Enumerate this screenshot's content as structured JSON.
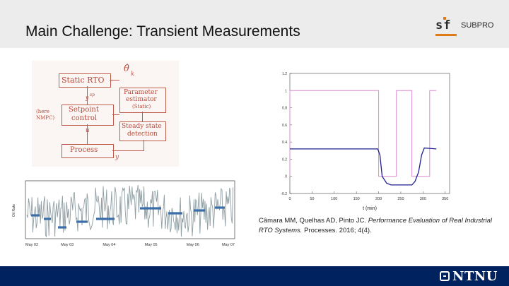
{
  "header": {
    "title": "Main Challenge: Transient Measurements"
  },
  "logo": {
    "mark": "sf",
    "name": "SUBPRO"
  },
  "diagram": {
    "static_rto": "Static RTO",
    "theta_hat": "θ̂",
    "theta_sub": "k",
    "param_line1": "Parameter",
    "param_line2": "estimator",
    "param_line3": "(Static)",
    "setpoint_line1": "Setpoint",
    "setpoint_line2": "control",
    "here_line1": "(here",
    "here_line2": "NMPC)",
    "steady_line1": "Steady state",
    "steady_line2": "detection",
    "process": "Process",
    "ysp": "y",
    "ysp_sup": "sp",
    "u": "u",
    "y": "y"
  },
  "timeseries": {
    "ylabel": "Oil Rate",
    "xticks": [
      "May 02",
      "May 03",
      "May 04",
      "May 05",
      "May 06",
      "May 07"
    ]
  },
  "chart_data": {
    "type": "line",
    "xlabel": "t (min)",
    "ylabel": "",
    "xlim": [
      0,
      360
    ],
    "ylim": [
      -0.2,
      1.2
    ],
    "xticks": [
      "0",
      "50",
      "100",
      "150",
      "200",
      "250",
      "300",
      "350"
    ],
    "yticks": [
      "-0.2",
      "0",
      "0.2",
      "0.4",
      "0.6",
      "0.8",
      "1",
      "1.2"
    ],
    "grid": false,
    "series": [
      {
        "color": "#1f1f8f",
        "x": [
          0,
          150,
          198,
          203,
          208,
          218,
          228,
          240,
          275,
          282,
          290,
          297,
          303,
          330
        ],
        "y": [
          0.32,
          0.32,
          0.32,
          0.25,
          0.0,
          -0.08,
          -0.1,
          -0.1,
          -0.1,
          -0.06,
          0.05,
          0.25,
          0.33,
          0.32
        ]
      },
      {
        "color": "#d98ccf",
        "x": [
          0,
          0,
          200,
          200,
          240,
          240,
          275,
          275,
          315,
          315,
          330
        ],
        "y": [
          0,
          1,
          1,
          0,
          0,
          1,
          1,
          0,
          0,
          1,
          1
        ]
      }
    ]
  },
  "citation": {
    "authors": "Câmara MM, Quelhas AD, Pinto JC.",
    "title": "Performance Evaluation of Real Industrial RTO Systems.",
    "journal": "Processes.",
    "year_vol": "2016; 4(4)."
  },
  "footer": {
    "brand": "NTNU"
  },
  "colors": {
    "header_bg": "#ececec",
    "footer_bg": "#00225e",
    "accent": "#e07b1a",
    "diagram_red": "#b84a3c"
  }
}
